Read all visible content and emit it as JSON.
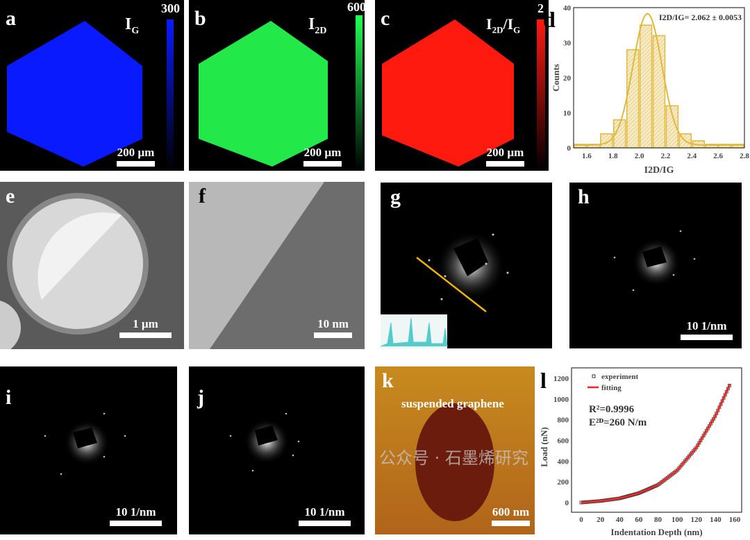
{
  "panels": {
    "a": {
      "letter": "a",
      "label": "I",
      "sub": "G",
      "cbar_max": "300",
      "scale": "200 µm",
      "color": "#0a1aff"
    },
    "b": {
      "letter": "b",
      "label": "I",
      "sub": "2D",
      "cbar_max": "600",
      "scale": "200 µm",
      "color": "#22e84a"
    },
    "c": {
      "letter": "c",
      "label": "I",
      "sub": "2D",
      "label2": "/I",
      "sub2": "G",
      "cbar_max": "2",
      "scale": "200 µm",
      "color": "#ff1a10"
    },
    "d": {
      "letter": "d"
    },
    "e": {
      "letter": "e",
      "scale": "1 µm"
    },
    "f": {
      "letter": "f",
      "scale": "10 nm"
    },
    "g": {
      "letter": "g"
    },
    "h": {
      "letter": "h",
      "scale": "10 1/nm"
    },
    "i": {
      "letter": "i",
      "scale": "10 1/nm"
    },
    "j": {
      "letter": "j",
      "scale": "10 1/nm"
    },
    "k": {
      "letter": "k",
      "annotation": "suspended graphene",
      "scale": "600 nm"
    },
    "l": {
      "letter": "l"
    }
  },
  "watermark": "公众号 · 石墨烯研究",
  "chart_data": [
    {
      "type": "bar",
      "panel": "d",
      "title": "I2D/IG= 2.062 ± 0.0053",
      "xlabel": "I2D/IG",
      "ylabel": "Counts",
      "bin_edges": [
        1.5,
        1.6,
        1.7,
        1.8,
        1.9,
        2.0,
        2.1,
        2.2,
        2.3,
        2.4,
        2.5,
        2.6,
        2.7,
        2.8
      ],
      "values": [
        1,
        1,
        4,
        8,
        28,
        35,
        32,
        12,
        4,
        2,
        1,
        1,
        1
      ],
      "fit": {
        "type": "gaussian",
        "mean": 2.062,
        "peak": 37.5,
        "sigma": 0.11
      },
      "xlim": [
        1.5,
        2.8
      ],
      "ylim": [
        0,
        40
      ],
      "xticks": [
        "1.6",
        "1.8",
        "2.0",
        "2.2",
        "2.4",
        "2.6",
        "2.8"
      ],
      "yticks": [
        "0",
        "10",
        "20",
        "30",
        "40"
      ],
      "color": "#e0b83c"
    },
    {
      "type": "line",
      "panel": "l",
      "xlabel": "Indentation Depth (nm)",
      "ylabel": "Load (nN)",
      "xlim": [
        -5,
        165
      ],
      "ylim": [
        -50,
        1300
      ],
      "xticks": [
        "0",
        "20",
        "40",
        "60",
        "80",
        "100",
        "120",
        "140",
        "160"
      ],
      "yticks": [
        "0",
        "200",
        "400",
        "600",
        "800",
        "1000",
        "1200"
      ],
      "legend": {
        "position": "top-left",
        "entries": [
          "experiment",
          "fitting"
        ]
      },
      "annotations": [
        "R²=0.9996",
        "E²ᴰ=260 N/m"
      ],
      "series": [
        {
          "name": "experiment",
          "x": [
            0,
            20,
            40,
            60,
            80,
            100,
            120,
            140,
            155
          ],
          "y": [
            0,
            15,
            40,
            90,
            170,
            310,
            530,
            840,
            1140
          ]
        },
        {
          "name": "fitting",
          "x": [
            0,
            20,
            40,
            60,
            80,
            100,
            120,
            140,
            155
          ],
          "y": [
            0,
            15,
            40,
            90,
            170,
            310,
            530,
            840,
            1140
          ]
        }
      ],
      "colors": {
        "experiment": "#333333",
        "fitting": "#ff2020"
      }
    }
  ]
}
